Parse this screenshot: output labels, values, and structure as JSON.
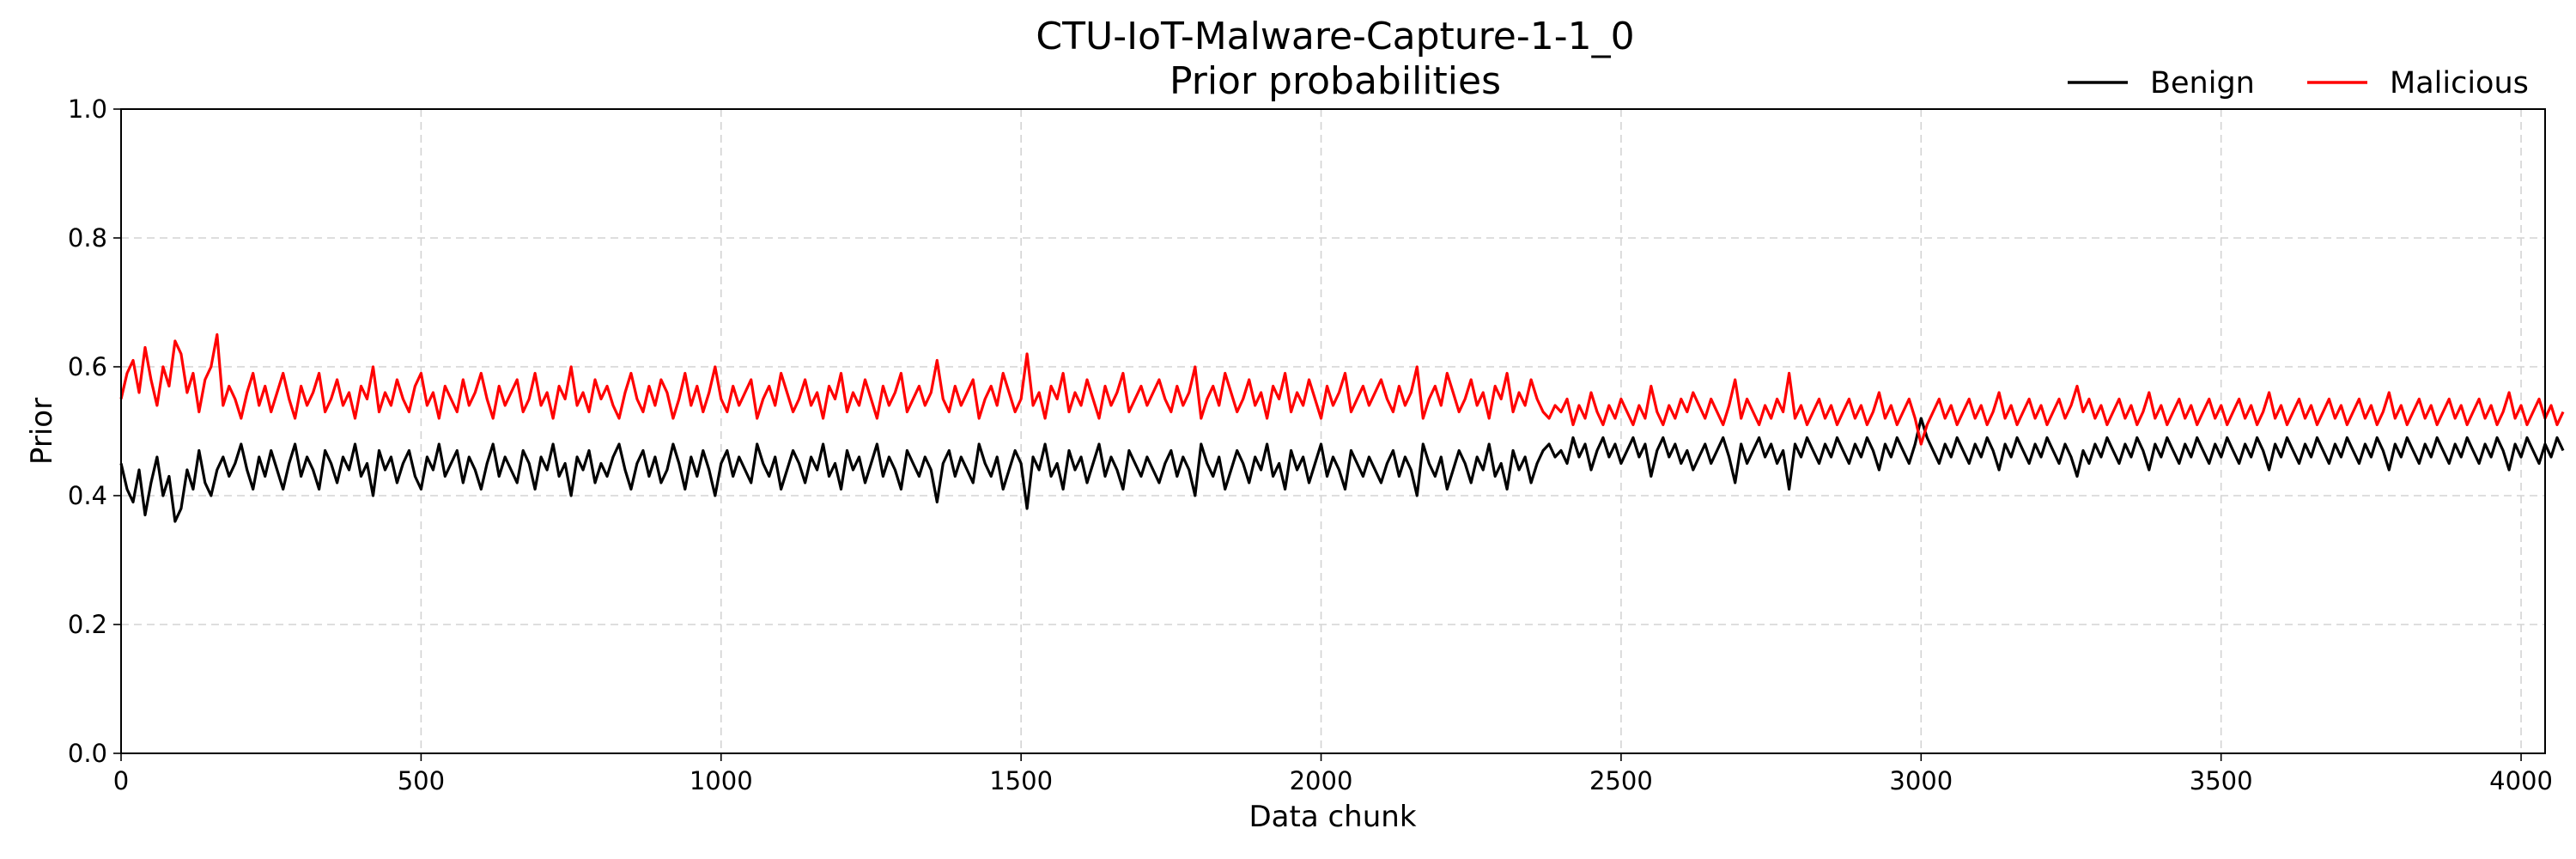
{
  "chart_data": {
    "type": "line",
    "title": "CTU-IoT-Malware-Capture-1-1_0",
    "subtitle": "Prior probabilities",
    "xlabel": "Data chunk",
    "ylabel": "Prior",
    "xlim": [
      0,
      4040
    ],
    "ylim": [
      0.0,
      1.0
    ],
    "x_ticks": [
      0,
      500,
      1000,
      1500,
      2000,
      2500,
      3000,
      3500,
      4000
    ],
    "y_ticks": [
      0.0,
      0.2,
      0.4,
      0.6,
      0.8,
      1.0
    ],
    "x_tick_labels": [
      "0",
      "500",
      "1000",
      "1500",
      "2000",
      "2500",
      "3000",
      "3500",
      "4000"
    ],
    "y_tick_labels": [
      "0.0",
      "0.2",
      "0.4",
      "0.6",
      "0.8",
      "1.0"
    ],
    "grid": true,
    "legend_position": "top-right, above plot",
    "x_step": 10,
    "series": [
      {
        "name": "Benign",
        "color": "#000000",
        "values": [
          0.45,
          0.41,
          0.39,
          0.44,
          0.37,
          0.42,
          0.46,
          0.4,
          0.43,
          0.36,
          0.38,
          0.44,
          0.41,
          0.47,
          0.42,
          0.4,
          0.44,
          0.46,
          0.43,
          0.45,
          0.48,
          0.44,
          0.41,
          0.46,
          0.43,
          0.47,
          0.44,
          0.41,
          0.45,
          0.48,
          0.43,
          0.46,
          0.44,
          0.41,
          0.47,
          0.45,
          0.42,
          0.46,
          0.44,
          0.48,
          0.43,
          0.45,
          0.4,
          0.47,
          0.44,
          0.46,
          0.42,
          0.45,
          0.47,
          0.43,
          0.41,
          0.46,
          0.44,
          0.48,
          0.43,
          0.45,
          0.47,
          0.42,
          0.46,
          0.44,
          0.41,
          0.45,
          0.48,
          0.43,
          0.46,
          0.44,
          0.42,
          0.47,
          0.45,
          0.41,
          0.46,
          0.44,
          0.48,
          0.43,
          0.45,
          0.4,
          0.46,
          0.44,
          0.47,
          0.42,
          0.45,
          0.43,
          0.46,
          0.48,
          0.44,
          0.41,
          0.45,
          0.47,
          0.43,
          0.46,
          0.42,
          0.44,
          0.48,
          0.45,
          0.41,
          0.46,
          0.43,
          0.47,
          0.44,
          0.4,
          0.45,
          0.47,
          0.43,
          0.46,
          0.44,
          0.42,
          0.48,
          0.45,
          0.43,
          0.46,
          0.41,
          0.44,
          0.47,
          0.45,
          0.42,
          0.46,
          0.44,
          0.48,
          0.43,
          0.45,
          0.41,
          0.47,
          0.44,
          0.46,
          0.42,
          0.45,
          0.48,
          0.43,
          0.46,
          0.44,
          0.41,
          0.47,
          0.45,
          0.43,
          0.46,
          0.44,
          0.39,
          0.45,
          0.47,
          0.43,
          0.46,
          0.44,
          0.42,
          0.48,
          0.45,
          0.43,
          0.46,
          0.41,
          0.44,
          0.47,
          0.45,
          0.38,
          0.46,
          0.44,
          0.48,
          0.43,
          0.45,
          0.41,
          0.47,
          0.44,
          0.46,
          0.42,
          0.45,
          0.48,
          0.43,
          0.46,
          0.44,
          0.41,
          0.47,
          0.45,
          0.43,
          0.46,
          0.44,
          0.42,
          0.45,
          0.47,
          0.43,
          0.46,
          0.44,
          0.4,
          0.48,
          0.45,
          0.43,
          0.46,
          0.41,
          0.44,
          0.47,
          0.45,
          0.42,
          0.46,
          0.44,
          0.48,
          0.43,
          0.45,
          0.41,
          0.47,
          0.44,
          0.46,
          0.42,
          0.45,
          0.48,
          0.43,
          0.46,
          0.44,
          0.41,
          0.47,
          0.45,
          0.43,
          0.46,
          0.44,
          0.42,
          0.45,
          0.47,
          0.43,
          0.46,
          0.44,
          0.4,
          0.48,
          0.45,
          0.43,
          0.46,
          0.41,
          0.44,
          0.47,
          0.45,
          0.42,
          0.46,
          0.44,
          0.48,
          0.43,
          0.45,
          0.41,
          0.47,
          0.44,
          0.46,
          0.42,
          0.45,
          0.47,
          0.48,
          0.46,
          0.47,
          0.45,
          0.49,
          0.46,
          0.48,
          0.44,
          0.47,
          0.49,
          0.46,
          0.48,
          0.45,
          0.47,
          0.49,
          0.46,
          0.48,
          0.43,
          0.47,
          0.49,
          0.46,
          0.48,
          0.45,
          0.47,
          0.44,
          0.46,
          0.48,
          0.45,
          0.47,
          0.49,
          0.46,
          0.42,
          0.48,
          0.45,
          0.47,
          0.49,
          0.46,
          0.48,
          0.45,
          0.47,
          0.41,
          0.48,
          0.46,
          0.49,
          0.47,
          0.45,
          0.48,
          0.46,
          0.49,
          0.47,
          0.45,
          0.48,
          0.46,
          0.49,
          0.47,
          0.44,
          0.48,
          0.46,
          0.49,
          0.47,
          0.45,
          0.48,
          0.52,
          0.49,
          0.47,
          0.45,
          0.48,
          0.46,
          0.49,
          0.47,
          0.45,
          0.48,
          0.46,
          0.49,
          0.47,
          0.44,
          0.48,
          0.46,
          0.49,
          0.47,
          0.45,
          0.48,
          0.46,
          0.49,
          0.47,
          0.45,
          0.48,
          0.46,
          0.43,
          0.47,
          0.45,
          0.48,
          0.46,
          0.49,
          0.47,
          0.45,
          0.48,
          0.46,
          0.49,
          0.47,
          0.44,
          0.48,
          0.46,
          0.49,
          0.47,
          0.45,
          0.48,
          0.46,
          0.49,
          0.47,
          0.45,
          0.48,
          0.46,
          0.49,
          0.47,
          0.45,
          0.48,
          0.46,
          0.49,
          0.47,
          0.44,
          0.48,
          0.46,
          0.49,
          0.47,
          0.45,
          0.48,
          0.46,
          0.49,
          0.47,
          0.45,
          0.48,
          0.46,
          0.49,
          0.47,
          0.45,
          0.48,
          0.46,
          0.49,
          0.47,
          0.44,
          0.48,
          0.46,
          0.49,
          0.47,
          0.45,
          0.48,
          0.46,
          0.49,
          0.47,
          0.45,
          0.48,
          0.46,
          0.49,
          0.47,
          0.45,
          0.48,
          0.46,
          0.49,
          0.47,
          0.44,
          0.48,
          0.46,
          0.49,
          0.47,
          0.45,
          0.48,
          0.46,
          0.49,
          0.47
        ]
      },
      {
        "name": "Malicious",
        "color": "#ff0000",
        "values": [
          0.55,
          0.59,
          0.61,
          0.56,
          0.63,
          0.58,
          0.54,
          0.6,
          0.57,
          0.64,
          0.62,
          0.56,
          0.59,
          0.53,
          0.58,
          0.6,
          0.65,
          0.54,
          0.57,
          0.55,
          0.52,
          0.56,
          0.59,
          0.54,
          0.57,
          0.53,
          0.56,
          0.59,
          0.55,
          0.52,
          0.57,
          0.54,
          0.56,
          0.59,
          0.53,
          0.55,
          0.58,
          0.54,
          0.56,
          0.52,
          0.57,
          0.55,
          0.6,
          0.53,
          0.56,
          0.54,
          0.58,
          0.55,
          0.53,
          0.57,
          0.59,
          0.54,
          0.56,
          0.52,
          0.57,
          0.55,
          0.53,
          0.58,
          0.54,
          0.56,
          0.59,
          0.55,
          0.52,
          0.57,
          0.54,
          0.56,
          0.58,
          0.53,
          0.55,
          0.59,
          0.54,
          0.56,
          0.52,
          0.57,
          0.55,
          0.6,
          0.54,
          0.56,
          0.53,
          0.58,
          0.55,
          0.57,
          0.54,
          0.52,
          0.56,
          0.59,
          0.55,
          0.53,
          0.57,
          0.54,
          0.58,
          0.56,
          0.52,
          0.55,
          0.59,
          0.54,
          0.57,
          0.53,
          0.56,
          0.6,
          0.55,
          0.53,
          0.57,
          0.54,
          0.56,
          0.58,
          0.52,
          0.55,
          0.57,
          0.54,
          0.59,
          0.56,
          0.53,
          0.55,
          0.58,
          0.54,
          0.56,
          0.52,
          0.57,
          0.55,
          0.59,
          0.53,
          0.56,
          0.54,
          0.58,
          0.55,
          0.52,
          0.57,
          0.54,
          0.56,
          0.59,
          0.53,
          0.55,
          0.57,
          0.54,
          0.56,
          0.61,
          0.55,
          0.53,
          0.57,
          0.54,
          0.56,
          0.58,
          0.52,
          0.55,
          0.57,
          0.54,
          0.59,
          0.56,
          0.53,
          0.55,
          0.62,
          0.54,
          0.56,
          0.52,
          0.57,
          0.55,
          0.59,
          0.53,
          0.56,
          0.54,
          0.58,
          0.55,
          0.52,
          0.57,
          0.54,
          0.56,
          0.59,
          0.53,
          0.55,
          0.57,
          0.54,
          0.56,
          0.58,
          0.55,
          0.53,
          0.57,
          0.54,
          0.56,
          0.6,
          0.52,
          0.55,
          0.57,
          0.54,
          0.59,
          0.56,
          0.53,
          0.55,
          0.58,
          0.54,
          0.56,
          0.52,
          0.57,
          0.55,
          0.59,
          0.53,
          0.56,
          0.54,
          0.58,
          0.55,
          0.52,
          0.57,
          0.54,
          0.56,
          0.59,
          0.53,
          0.55,
          0.57,
          0.54,
          0.56,
          0.58,
          0.55,
          0.53,
          0.57,
          0.54,
          0.56,
          0.6,
          0.52,
          0.55,
          0.57,
          0.54,
          0.59,
          0.56,
          0.53,
          0.55,
          0.58,
          0.54,
          0.56,
          0.52,
          0.57,
          0.55,
          0.59,
          0.53,
          0.56,
          0.54,
          0.58,
          0.55,
          0.53,
          0.52,
          0.54,
          0.53,
          0.55,
          0.51,
          0.54,
          0.52,
          0.56,
          0.53,
          0.51,
          0.54,
          0.52,
          0.55,
          0.53,
          0.51,
          0.54,
          0.52,
          0.57,
          0.53,
          0.51,
          0.54,
          0.52,
          0.55,
          0.53,
          0.56,
          0.54,
          0.52,
          0.55,
          0.53,
          0.51,
          0.54,
          0.58,
          0.52,
          0.55,
          0.53,
          0.51,
          0.54,
          0.52,
          0.55,
          0.53,
          0.59,
          0.52,
          0.54,
          0.51,
          0.53,
          0.55,
          0.52,
          0.54,
          0.51,
          0.53,
          0.55,
          0.52,
          0.54,
          0.51,
          0.53,
          0.56,
          0.52,
          0.54,
          0.51,
          0.53,
          0.55,
          0.52,
          0.48,
          0.51,
          0.53,
          0.55,
          0.52,
          0.54,
          0.51,
          0.53,
          0.55,
          0.52,
          0.54,
          0.51,
          0.53,
          0.56,
          0.52,
          0.54,
          0.51,
          0.53,
          0.55,
          0.52,
          0.54,
          0.51,
          0.53,
          0.55,
          0.52,
          0.54,
          0.57,
          0.53,
          0.55,
          0.52,
          0.54,
          0.51,
          0.53,
          0.55,
          0.52,
          0.54,
          0.51,
          0.53,
          0.56,
          0.52,
          0.54,
          0.51,
          0.53,
          0.55,
          0.52,
          0.54,
          0.51,
          0.53,
          0.55,
          0.52,
          0.54,
          0.51,
          0.53,
          0.55,
          0.52,
          0.54,
          0.51,
          0.53,
          0.56,
          0.52,
          0.54,
          0.51,
          0.53,
          0.55,
          0.52,
          0.54,
          0.51,
          0.53,
          0.55,
          0.52,
          0.54,
          0.51,
          0.53,
          0.55,
          0.52,
          0.54,
          0.51,
          0.53,
          0.56,
          0.52,
          0.54,
          0.51,
          0.53,
          0.55,
          0.52,
          0.54,
          0.51,
          0.53,
          0.55,
          0.52,
          0.54,
          0.51,
          0.53,
          0.55,
          0.52,
          0.54,
          0.51,
          0.53,
          0.56,
          0.52,
          0.54,
          0.51,
          0.53,
          0.55,
          0.52,
          0.54,
          0.51,
          0.53
        ]
      }
    ]
  }
}
